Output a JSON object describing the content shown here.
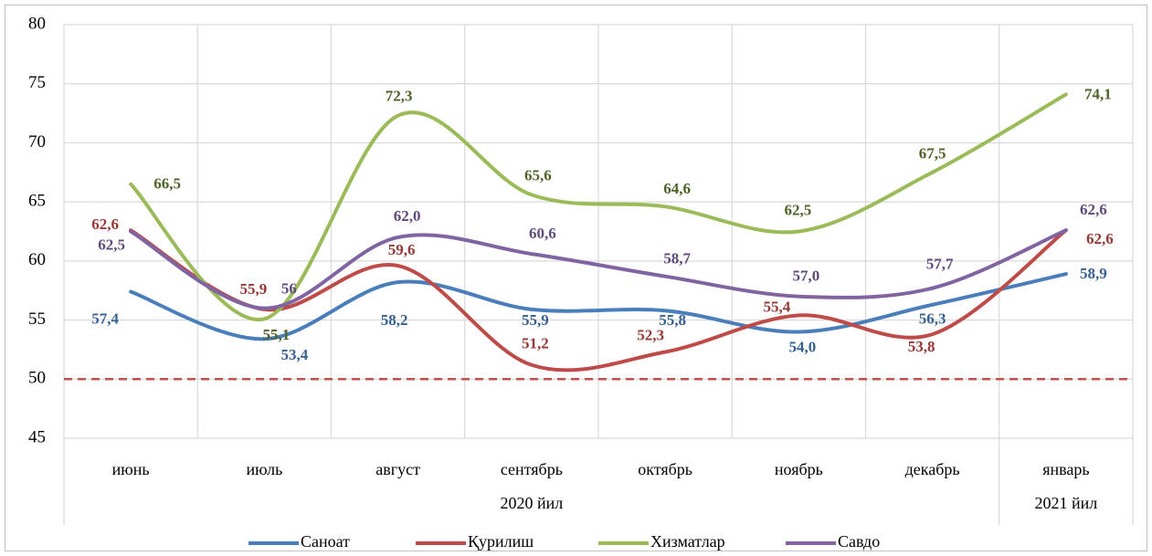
{
  "chart_data": {
    "type": "line",
    "categories": [
      "июнь",
      "июль",
      "август",
      "сентябрь",
      "октябрь",
      "ноябрь",
      "декабрь",
      "январь"
    ],
    "category_groups": [
      {
        "label": "2020 йил",
        "span": 7
      },
      {
        "label": "2021 йил",
        "span": 1
      }
    ],
    "series": [
      {
        "name": "Саноат",
        "color": "#4a7ebb",
        "label_color": "#376092",
        "values": [
          57.4,
          53.4,
          58.2,
          55.9,
          55.8,
          54.0,
          56.3,
          58.9
        ],
        "value_labels": [
          "57,4",
          "53,4",
          "58,2",
          "55,9",
          "55,8",
          "54,0",
          "56,3",
          "58,9"
        ]
      },
      {
        "name": "Қурилиш",
        "color": "#be4b48",
        "label_color": "#953735",
        "values": [
          62.6,
          55.9,
          59.6,
          51.2,
          52.3,
          55.4,
          53.8,
          62.6
        ],
        "value_labels": [
          "62,6",
          "55,9",
          "59,6",
          "51,2",
          "52,3",
          "55,4",
          "53,8",
          "62,6"
        ]
      },
      {
        "name": "Хизматлар",
        "color": "#9bbb59",
        "label_color": "#4f6228",
        "values": [
          66.5,
          55.1,
          72.3,
          65.6,
          64.6,
          62.5,
          67.5,
          74.1
        ],
        "value_labels": [
          "66,5",
          "55,1",
          "72,3",
          "65,6",
          "64,6",
          "62,5",
          "67,5",
          "74,1"
        ]
      },
      {
        "name": "Савдо",
        "color": "#8064a2",
        "label_color": "#604a7b",
        "values": [
          62.5,
          56,
          62.0,
          60.6,
          58.7,
          57.0,
          57.7,
          62.6
        ],
        "value_labels": [
          "62,5",
          "56",
          "62,0",
          "60,6",
          "58,7",
          "57,0",
          "57,7",
          "62,6"
        ]
      }
    ],
    "reference_line": {
      "value": 50,
      "color": "#c0504d",
      "dashed": true
    },
    "ylim": [
      45,
      80
    ],
    "yticks": [
      45,
      50,
      55,
      60,
      65,
      70,
      75,
      80
    ],
    "grid": true,
    "smooth": true,
    "legend": "bottom"
  }
}
